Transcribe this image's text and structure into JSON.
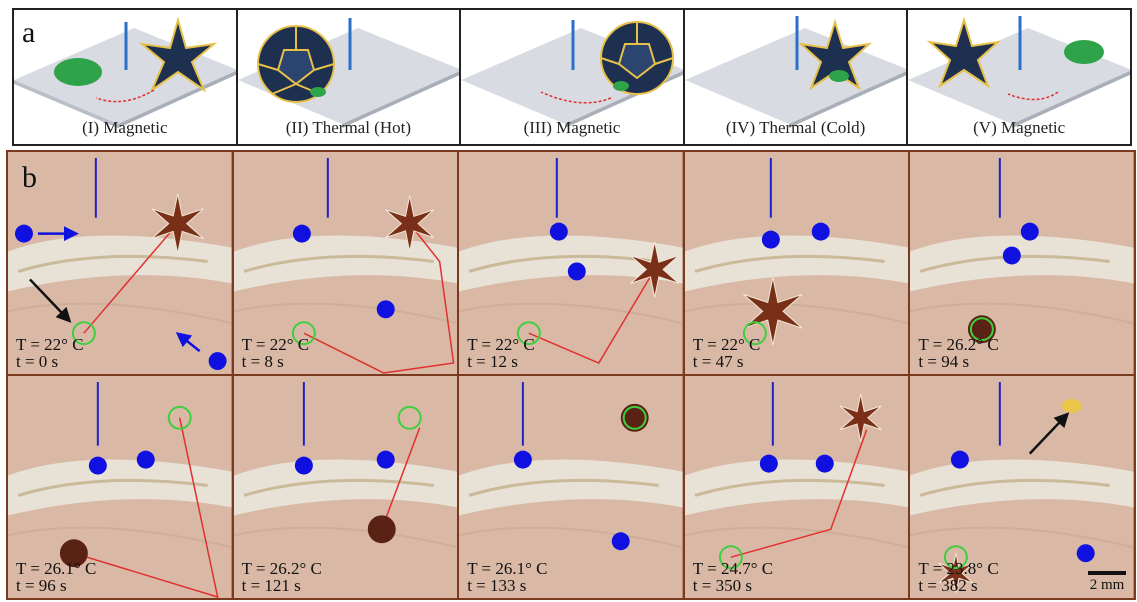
{
  "figure": {
    "label_a": "a",
    "label_b": "b",
    "scale_bar": "2 mm"
  },
  "panel_a": [
    {
      "caption": "(I) Magnetic",
      "icon": "robot-open-with-blob"
    },
    {
      "caption": "(II) Thermal (Hot)",
      "icon": "robot-closed-sphere"
    },
    {
      "caption": "(III) Magnetic",
      "icon": "robot-closed-moving"
    },
    {
      "caption": "(IV) Thermal (Cold)",
      "icon": "robot-open-release"
    },
    {
      "caption": "(V) Magnetic",
      "icon": "robot-open-with-blob"
    }
  ],
  "panel_b": [
    {
      "temp": "T = 22° C",
      "time": "t = 0 s"
    },
    {
      "temp": "T = 22° C",
      "time": "t = 8 s"
    },
    {
      "temp": "T = 22° C",
      "time": "t = 12 s"
    },
    {
      "temp": "T = 22° C",
      "time": "t = 47 s"
    },
    {
      "temp": "T = 26.2° C",
      "time": "t = 94 s"
    },
    {
      "temp": "T = 26.1° C",
      "time": "t = 96 s"
    },
    {
      "temp": "T = 26.2° C",
      "time": "t = 121 s"
    },
    {
      "temp": "T = 26.1° C",
      "time": "t = 133 s"
    },
    {
      "temp": "T = 24.7° C",
      "time": "t = 350 s"
    },
    {
      "temp": "T = 23.8° C",
      "time": "t = 382 s"
    }
  ],
  "colors": {
    "tissue": "#d9b9a6",
    "marker": "#1010e0",
    "trajectory": "#e03030",
    "target_ring": "#3ecf3e",
    "robot": "#1d3050",
    "robot_edge": "#e7c04a",
    "blob": "#2fa34a"
  }
}
